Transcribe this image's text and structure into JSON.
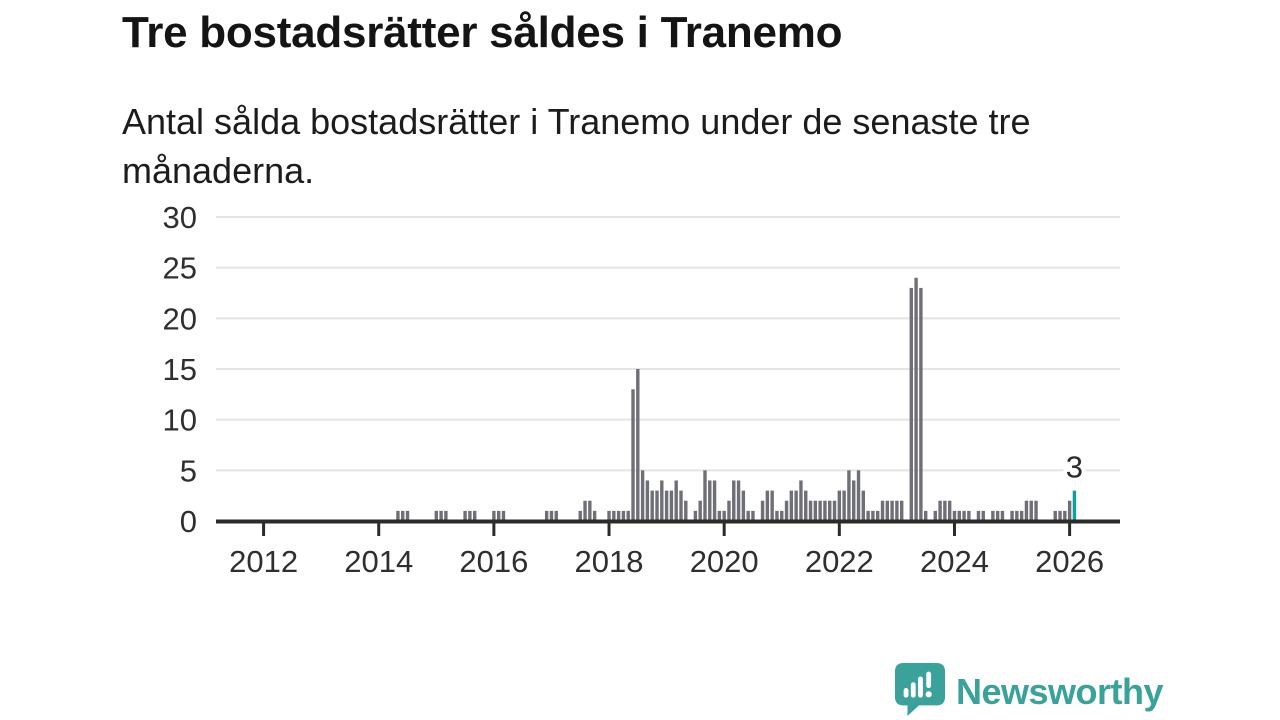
{
  "header": {
    "title": "Tre bostadsrätter såldes i Tranemo",
    "subtitle": "Antal sålda bostadsrätter i Tranemo under de senaste tre månaderna."
  },
  "logo": {
    "text": "Newsworthy"
  },
  "colors": {
    "bar": "#6f6f77",
    "highlight": "#0aa39e",
    "axis": "#2b2b2b",
    "grid": "#e4e4e4",
    "tick_label": "#2f2f2f",
    "logo_teal": "#3aa29b"
  },
  "chart_data": {
    "type": "bar",
    "title": "Tre bostadsrätter såldes i Tranemo",
    "subtitle": "Antal sålda bostadsrätter i Tranemo under de senaste tre månaderna.",
    "x_start_month": "2011-01",
    "x_end_month": "2026-02",
    "xlabel": "",
    "ylabel": "",
    "ylim": [
      0,
      30
    ],
    "yticks": [
      0,
      5,
      10,
      15,
      20,
      25,
      30
    ],
    "xtick_years": [
      2012,
      2014,
      2016,
      2018,
      2020,
      2022,
      2024,
      2026
    ],
    "grid": true,
    "legend": false,
    "highlight_last_bar": true,
    "last_value_label": "3",
    "monthly_values": [
      0,
      0,
      0,
      0,
      0,
      0,
      0,
      0,
      0,
      0,
      0,
      0,
      0,
      0,
      0,
      0,
      0,
      0,
      0,
      0,
      0,
      0,
      0,
      0,
      0,
      0,
      0,
      0,
      0,
      0,
      0,
      0,
      0,
      0,
      0,
      0,
      0,
      0,
      0,
      0,
      1,
      1,
      1,
      0,
      0,
      0,
      0,
      0,
      1,
      1,
      1,
      0,
      0,
      0,
      1,
      1,
      1,
      0,
      0,
      0,
      1,
      1,
      1,
      0,
      0,
      0,
      0,
      0,
      0,
      0,
      0,
      1,
      1,
      1,
      0,
      0,
      0,
      0,
      1,
      2,
      2,
      1,
      0,
      0,
      1,
      1,
      1,
      1,
      1,
      13,
      15,
      5,
      4,
      3,
      3,
      4,
      3,
      3,
      4,
      3,
      2,
      0,
      1,
      2,
      5,
      4,
      4,
      1,
      1,
      2,
      4,
      4,
      3,
      1,
      1,
      0,
      2,
      3,
      3,
      1,
      1,
      2,
      3,
      3,
      4,
      3,
      2,
      2,
      2,
      2,
      2,
      2,
      3,
      3,
      5,
      4,
      5,
      3,
      1,
      1,
      1,
      2,
      2,
      2,
      2,
      2,
      0,
      23,
      24,
      23,
      1,
      0,
      1,
      2,
      2,
      2,
      1,
      1,
      1,
      1,
      0,
      1,
      1,
      0,
      1,
      1,
      1,
      0,
      1,
      1,
      1,
      2,
      2,
      2,
      0,
      0,
      0,
      1,
      1,
      1,
      2,
      3
    ]
  }
}
